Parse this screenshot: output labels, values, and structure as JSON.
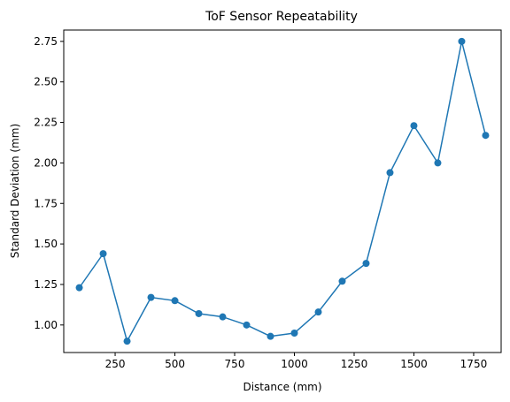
{
  "chart_data": {
    "type": "line",
    "title": "ToF Sensor Repeatability",
    "xlabel": "Distance (mm)",
    "ylabel": "Standard Deviation (mm)",
    "xlim": [
      35,
      1865
    ],
    "ylim": [
      0.83,
      2.82
    ],
    "x_ticks": [
      250,
      500,
      750,
      1000,
      1250,
      1500,
      1750
    ],
    "x_tick_labels": [
      "250",
      "500",
      "750",
      "1000",
      "1250",
      "1500",
      "1750"
    ],
    "y_ticks": [
      1.0,
      1.25,
      1.5,
      1.75,
      2.0,
      2.25,
      2.5,
      2.75
    ],
    "y_tick_labels": [
      "1.00",
      "1.25",
      "1.50",
      "1.75",
      "2.00",
      "2.25",
      "2.50",
      "2.75"
    ],
    "grid": false,
    "legend": false,
    "series": [
      {
        "color": "#1f77b4",
        "marker": "circle",
        "x": [
          100,
          200,
          300,
          400,
          500,
          600,
          700,
          800,
          900,
          1000,
          1100,
          1200,
          1300,
          1400,
          1500,
          1600,
          1700,
          1800
        ],
        "y": [
          1.23,
          1.44,
          0.9,
          1.17,
          1.15,
          1.07,
          1.05,
          1.0,
          0.93,
          0.95,
          1.08,
          1.27,
          1.38,
          1.94,
          2.23,
          2.0,
          2.75,
          2.17
        ]
      }
    ]
  }
}
